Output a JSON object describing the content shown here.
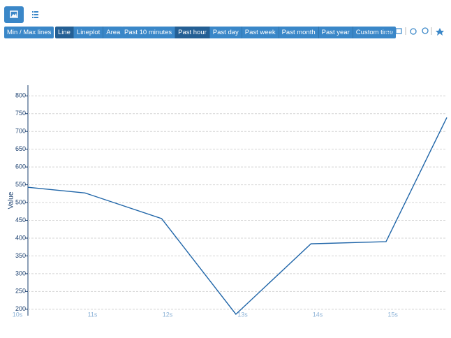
{
  "toolbar": {
    "min_max": "Min / Max lines",
    "plot_types": [
      "Line",
      "Lineplot",
      "Area"
    ],
    "ranges": [
      "Past 10 minutes",
      "Past hour",
      "Past day",
      "Past week",
      "Past month",
      "Past year",
      "Custom time"
    ]
  },
  "chart_data": {
    "type": "line",
    "y_label": "Value",
    "x": [
      10.14,
      10.9,
      11.92,
      12.91,
      13.91,
      14.91,
      15.72
    ],
    "series": [
      {
        "name": "Value",
        "color": "#1f65a8",
        "values": [
          543,
          527,
          455,
          186,
          384,
          390,
          739
        ]
      }
    ],
    "xlim": [
      10,
      15.72
    ],
    "xticks": [
      {
        "value": 10,
        "label": "10s"
      },
      {
        "value": 11,
        "label": "11s"
      },
      {
        "value": 12,
        "label": "12s"
      },
      {
        "value": 13,
        "label": "13s"
      },
      {
        "value": 14,
        "label": "14s"
      },
      {
        "value": 15,
        "label": "15s"
      }
    ],
    "ylim": [
      182,
      830
    ],
    "yticks": [
      200,
      250,
      300,
      350,
      400,
      450,
      500,
      550,
      600,
      650,
      700,
      750,
      800
    ],
    "grid": true
  }
}
